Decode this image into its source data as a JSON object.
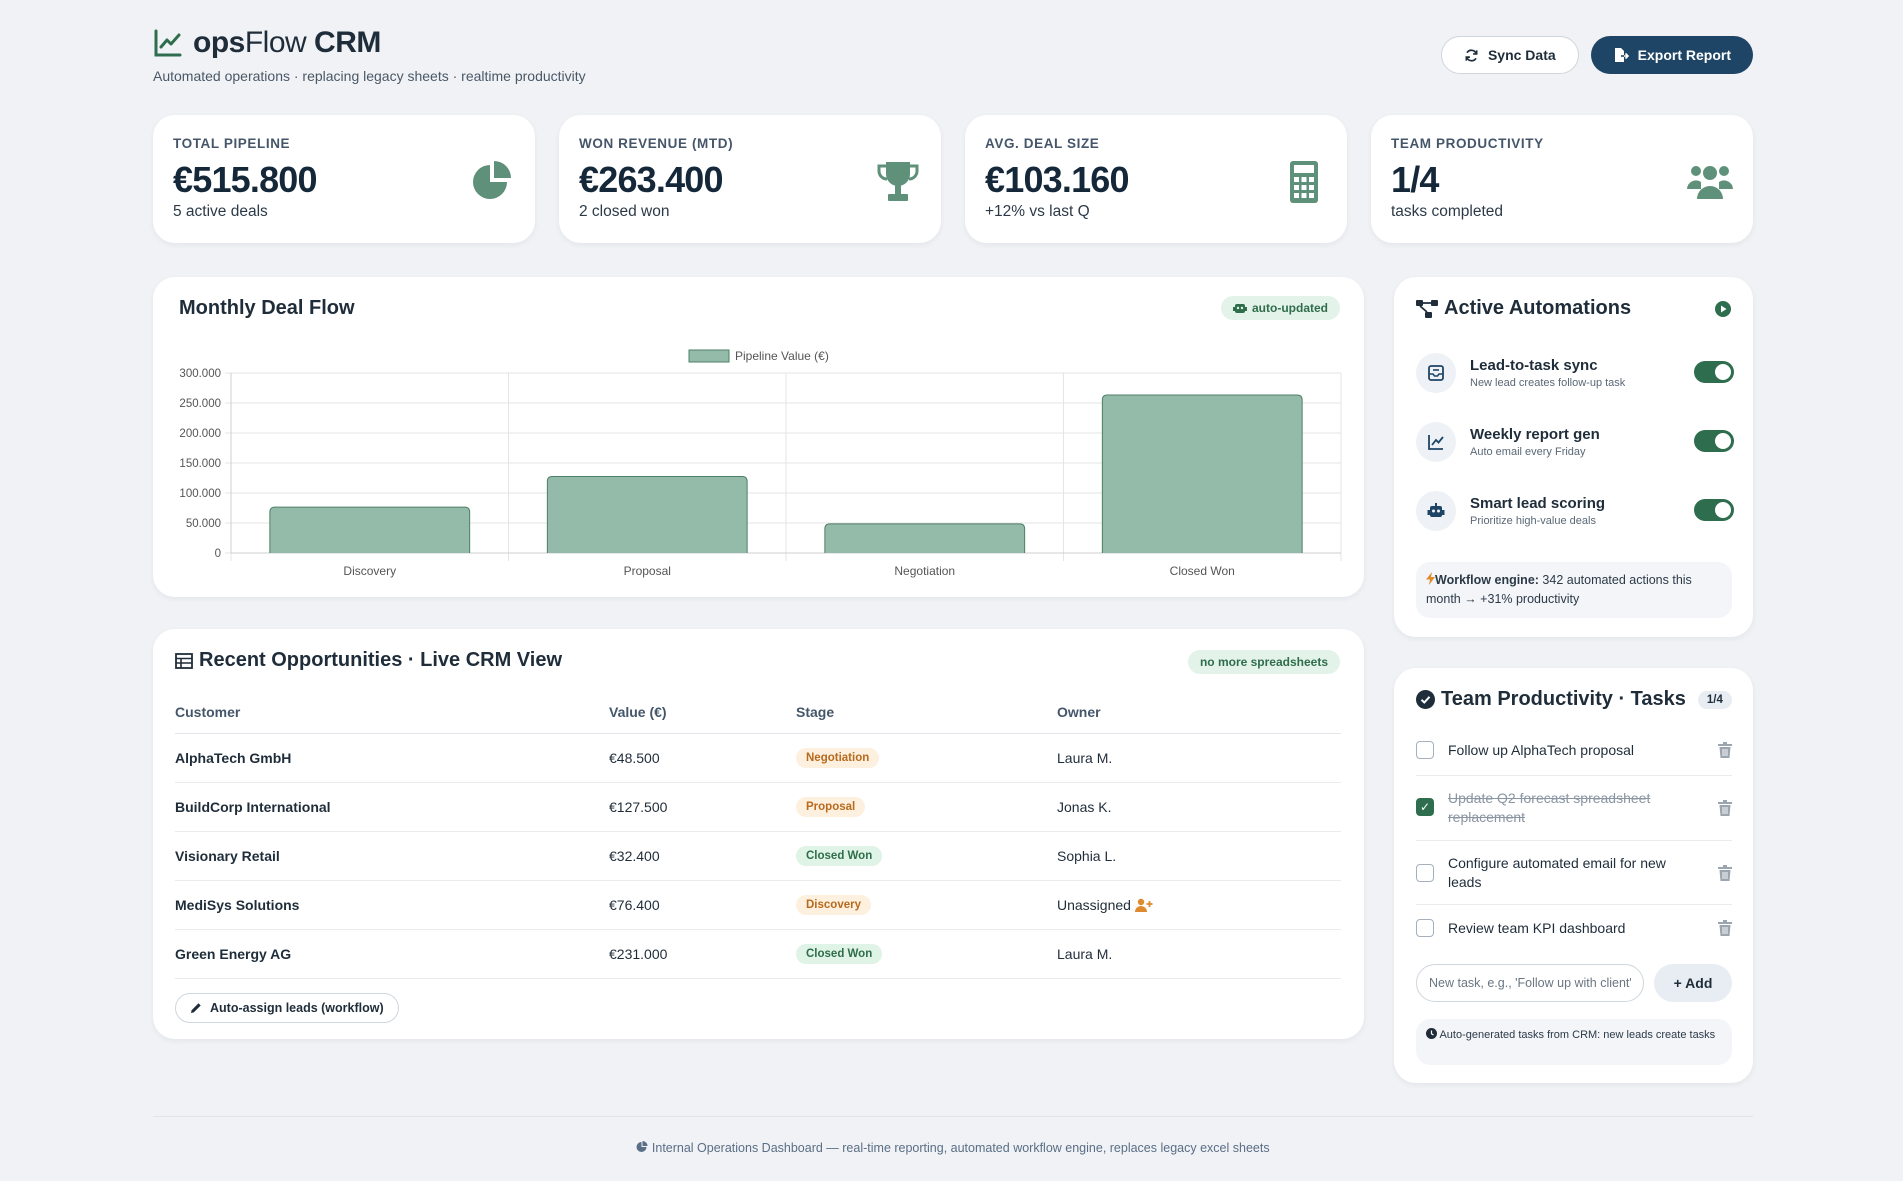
{
  "header": {
    "brand_bold_1": "ops",
    "brand_light": "Flow",
    "brand_bold_2": " CRM",
    "subtitle": "Automated operations · replacing legacy sheets · realtime productivity",
    "sync_label": "Sync Data",
    "export_label": "Export Report"
  },
  "kpis": [
    {
      "label": "TOTAL PIPELINE",
      "value": "€515.800",
      "sub": "5 active deals",
      "icon": "pie-chart-icon"
    },
    {
      "label": "WON REVENUE (MTD)",
      "value": "€263.400",
      "sub": "2 closed won",
      "icon": "trophy-icon"
    },
    {
      "label": "AVG. DEAL SIZE",
      "value": "€103.160",
      "sub": "+12% vs last Q",
      "icon": "calculator-icon"
    },
    {
      "label": "TEAM PRODUCTIVITY",
      "value": "1/4",
      "sub": "tasks completed",
      "icon": "users-icon"
    }
  ],
  "chart_card": {
    "title": "Monthly Deal Flow",
    "badge": "auto-updated"
  },
  "chart_data": {
    "type": "bar",
    "categories": [
      "Discovery",
      "Proposal",
      "Negotiation",
      "Closed Won"
    ],
    "series": [
      {
        "name": "Pipeline Value (€)",
        "values": [
          76400,
          127500,
          48500,
          263400
        ]
      }
    ],
    "yticks": [
      "0",
      "50.000",
      "100.000",
      "150.000",
      "200.000",
      "250.000",
      "300.000"
    ],
    "ylim": [
      0,
      300000
    ],
    "legend": "top-center",
    "grid": true,
    "bar_color": "#94bba9",
    "bar_border": "#4f7f67"
  },
  "table_card": {
    "title": "Recent Opportunities · Live CRM View",
    "badge": "no more spreadsheets",
    "columns": [
      "Customer",
      "Value (€)",
      "Stage",
      "Owner"
    ],
    "rows": [
      {
        "customer": "AlphaTech GmbH",
        "value": "€48.500",
        "stage": "Negotiation",
        "owner": "Laura M."
      },
      {
        "customer": "BuildCorp International",
        "value": "€127.500",
        "stage": "Proposal",
        "owner": "Jonas K."
      },
      {
        "customer": "Visionary Retail",
        "value": "€32.400",
        "stage": "Closed Won",
        "owner": "Sophia L."
      },
      {
        "customer": "MediSys Solutions",
        "value": "€76.400",
        "stage": "Discovery",
        "owner": "Unassigned"
      },
      {
        "customer": "Green Energy AG",
        "value": "€231.000",
        "stage": "Closed Won",
        "owner": "Laura M."
      }
    ],
    "auto_assign_label": "Auto-assign leads (workflow)"
  },
  "automations": {
    "title": "Active Automations",
    "items": [
      {
        "name": "Lead-to-task sync",
        "desc": "New lead creates follow-up task",
        "enabled": true
      },
      {
        "name": "Weekly report gen",
        "desc": "Auto email every Friday",
        "enabled": true
      },
      {
        "name": "Smart lead scoring",
        "desc": "Prioritize high-value deals",
        "enabled": true
      }
    ],
    "engine_label": "Workflow engine:",
    "engine_text": " 342 automated actions this month → +31% productivity"
  },
  "tasks": {
    "title": "Team Productivity · Tasks",
    "count": "1/4",
    "items": [
      {
        "text": "Follow up AlphaTech proposal",
        "done": false
      },
      {
        "text": "Update Q2 forecast spreadsheet replacement",
        "done": true
      },
      {
        "text": "Configure automated email for new leads",
        "done": false
      },
      {
        "text": "Review team KPI dashboard",
        "done": false
      }
    ],
    "input_placeholder": "New task, e.g., 'Follow up with client'",
    "add_label": "+ Add",
    "note": "Auto-generated tasks from CRM: new leads create tasks"
  },
  "footer": {
    "text": "Internal Operations Dashboard — real-time reporting, automated workflow engine, replaces legacy excel sheets"
  },
  "colors": {
    "accent": "#2e6e4e",
    "dark_button": "#1e4566",
    "icon_green": "#5f917a"
  }
}
